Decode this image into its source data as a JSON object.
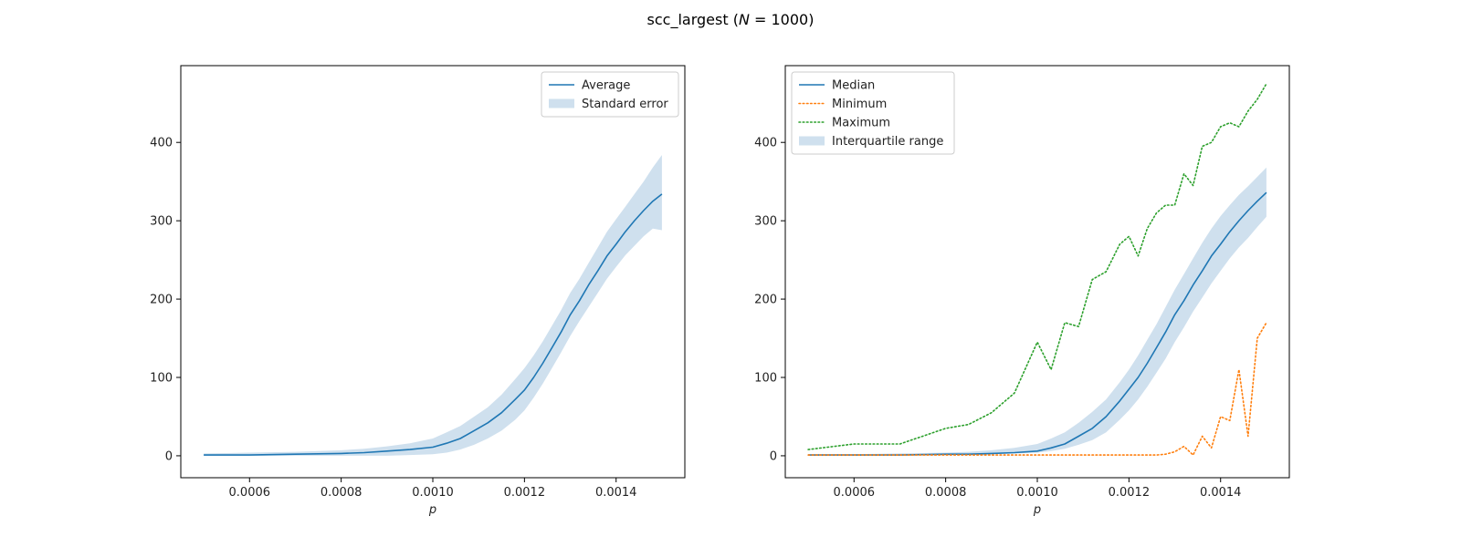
{
  "figure": {
    "title_prefix": "scc_largest (",
    "title_var": "N",
    "title_suffix": " = 1000)"
  },
  "colors": {
    "blue": "#1f77b4",
    "orange": "#ff7f0e",
    "green": "#2ca02c",
    "band": "#cfe0ee"
  },
  "chart_data": [
    {
      "type": "line",
      "xlabel": "p",
      "xlim": [
        0.00045,
        0.00155
      ],
      "ylim": [
        -28,
        498
      ],
      "xticks": [
        "0.0006",
        "0.0008",
        "0.0010",
        "0.0012",
        "0.0014"
      ],
      "xtick_values": [
        0.0006,
        0.0008,
        0.001,
        0.0012,
        0.0014
      ],
      "yticks": [
        "0",
        "100",
        "200",
        "300",
        "400"
      ],
      "ytick_values": [
        0,
        100,
        200,
        300,
        400
      ],
      "legend_position": "upper right",
      "legend": [
        "Average",
        "Standard error"
      ],
      "x": [
        0.0005,
        0.0006,
        0.0007,
        0.0008,
        0.00085,
        0.0009,
        0.00095,
        0.001,
        0.00103,
        0.00106,
        0.00109,
        0.00112,
        0.00115,
        0.00118,
        0.0012,
        0.00122,
        0.00124,
        0.00126,
        0.00128,
        0.0013,
        0.00132,
        0.00134,
        0.00136,
        0.00138,
        0.0014,
        0.00142,
        0.00144,
        0.00146,
        0.00148,
        0.0015
      ],
      "series": [
        {
          "name": "Average",
          "style": "solid",
          "color_key": "blue",
          "values": [
            1,
            1,
            2,
            3,
            4,
            6,
            8,
            11,
            16,
            22,
            32,
            42,
            55,
            72,
            84,
            100,
            118,
            138,
            158,
            180,
            198,
            218,
            236,
            255,
            270,
            286,
            300,
            313,
            325,
            334
          ]
        }
      ],
      "band": {
        "name": "Standard error",
        "color_key": "band",
        "lower": [
          0,
          0,
          0,
          0,
          0,
          0,
          1,
          2,
          4,
          8,
          14,
          22,
          32,
          46,
          58,
          74,
          92,
          112,
          132,
          153,
          172,
          190,
          208,
          226,
          241,
          256,
          268,
          280,
          290,
          288
        ],
        "upper": [
          3,
          4,
          5,
          7,
          9,
          12,
          16,
          22,
          30,
          38,
          50,
          62,
          78,
          98,
          112,
          128,
          146,
          166,
          186,
          208,
          226,
          246,
          266,
          286,
          302,
          318,
          334,
          350,
          368,
          384
        ]
      }
    },
    {
      "type": "line",
      "xlabel": "p",
      "xlim": [
        0.00045,
        0.00155
      ],
      "ylim": [
        -28,
        498
      ],
      "xticks": [
        "0.0006",
        "0.0008",
        "0.0010",
        "0.0012",
        "0.0014"
      ],
      "xtick_values": [
        0.0006,
        0.0008,
        0.001,
        0.0012,
        0.0014
      ],
      "yticks": [
        "0",
        "100",
        "200",
        "300",
        "400"
      ],
      "ytick_values": [
        0,
        100,
        200,
        300,
        400
      ],
      "legend_position": "upper left",
      "legend": [
        "Median",
        "Minimum",
        "Maximum",
        "Interquartile range"
      ],
      "x": [
        0.0005,
        0.0006,
        0.0007,
        0.0008,
        0.00085,
        0.0009,
        0.00095,
        0.001,
        0.00103,
        0.00106,
        0.00109,
        0.00112,
        0.00115,
        0.00118,
        0.0012,
        0.00122,
        0.00124,
        0.00126,
        0.00128,
        0.0013,
        0.00132,
        0.00134,
        0.00136,
        0.00138,
        0.0014,
        0.00142,
        0.00144,
        0.00146,
        0.00148,
        0.0015
      ],
      "series": [
        {
          "name": "Median",
          "style": "solid",
          "color_key": "blue",
          "values": [
            1,
            1,
            1,
            2,
            2,
            3,
            4,
            6,
            10,
            15,
            25,
            35,
            50,
            70,
            85,
            100,
            118,
            138,
            158,
            180,
            198,
            218,
            236,
            255,
            270,
            286,
            300,
            313,
            325,
            336
          ]
        },
        {
          "name": "Minimum",
          "style": "dotted",
          "color_key": "orange",
          "values": [
            1,
            1,
            1,
            1,
            1,
            1,
            1,
            1,
            1,
            1,
            1,
            1,
            1,
            1,
            1,
            1,
            1,
            1,
            2,
            5,
            12,
            1,
            25,
            10,
            50,
            45,
            110,
            25,
            150,
            170
          ]
        },
        {
          "name": "Maximum",
          "style": "dotted",
          "color_key": "green",
          "values": [
            8,
            15,
            15,
            35,
            40,
            55,
            80,
            145,
            110,
            170,
            165,
            225,
            235,
            270,
            280,
            255,
            290,
            310,
            320,
            320,
            360,
            345,
            395,
            400,
            420,
            425,
            420,
            440,
            455,
            475
          ]
        }
      ],
      "band": {
        "name": "Interquartile range",
        "color_key": "band",
        "lower": [
          0,
          0,
          0,
          1,
          1,
          2,
          3,
          4,
          6,
          9,
          14,
          20,
          30,
          46,
          58,
          72,
          88,
          106,
          124,
          145,
          164,
          184,
          202,
          220,
          236,
          252,
          266,
          278,
          292,
          305
        ],
        "upper": [
          2,
          2,
          3,
          4,
          5,
          7,
          10,
          15,
          22,
          30,
          42,
          56,
          72,
          94,
          110,
          128,
          148,
          168,
          190,
          212,
          232,
          252,
          272,
          290,
          306,
          320,
          333,
          344,
          356,
          368
        ]
      }
    }
  ]
}
